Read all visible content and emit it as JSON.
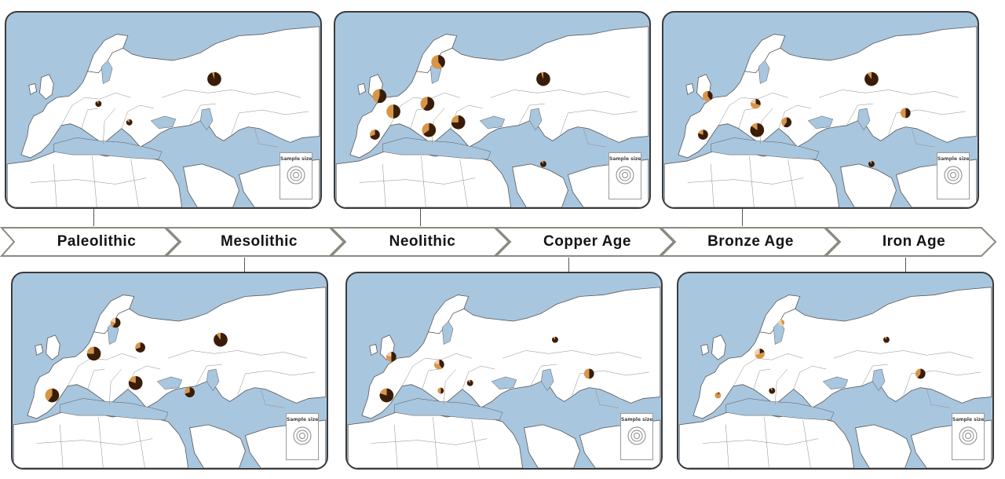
{
  "timeline": {
    "periods": [
      {
        "label": "Paleolithic"
      },
      {
        "label": "Mesolithic"
      },
      {
        "label": "Neolithic"
      },
      {
        "label": "Copper Age"
      },
      {
        "label": "Bronze Age"
      },
      {
        "label": "Iron Age"
      }
    ]
  },
  "legend": {
    "title": "Sample size"
  },
  "colors": {
    "sea": "#a9c6df",
    "land": "#ffffff",
    "border": "#555555",
    "dark_brown": "#3a1d08",
    "tan": "#d99546",
    "light_tan": "#ecd0ac",
    "panel_border": "#3b3b3b"
  },
  "maps": [
    {
      "period": "Paleolithic",
      "samples": [
        {
          "region": "Siberia",
          "size": 3,
          "parts": [
            0.95,
            0.05,
            0
          ]
        },
        {
          "region": "Central Europe",
          "size": 1,
          "parts": [
            0.9,
            0.1,
            0
          ]
        },
        {
          "region": "Balkans",
          "size": 1,
          "parts": [
            0.85,
            0.15,
            0
          ]
        }
      ]
    },
    {
      "period": "Mesolithic",
      "samples": [
        {
          "region": "Siberia",
          "size": 3,
          "parts": [
            0.9,
            0.1,
            0
          ]
        },
        {
          "region": "Scandinavia",
          "size": 2,
          "parts": [
            0.6,
            0.2,
            0.2
          ]
        },
        {
          "region": "Baltic",
          "size": 2,
          "parts": [
            0.7,
            0.3,
            0
          ]
        },
        {
          "region": "North Germany",
          "size": 3,
          "parts": [
            0.75,
            0.25,
            0
          ]
        },
        {
          "region": "Iberia",
          "size": 3,
          "parts": [
            0.6,
            0.4,
            0
          ]
        },
        {
          "region": "Balkans",
          "size": 3,
          "parts": [
            0.8,
            0.2,
            0
          ]
        },
        {
          "region": "Anatolia",
          "size": 2,
          "parts": [
            0.7,
            0.3,
            0
          ]
        }
      ]
    },
    {
      "period": "Neolithic",
      "samples": [
        {
          "region": "Siberia",
          "size": 3,
          "parts": [
            0.95,
            0.05,
            0
          ]
        },
        {
          "region": "Britain",
          "size": 3,
          "parts": [
            0.55,
            0.45,
            0
          ]
        },
        {
          "region": "Scandinavia",
          "size": 3,
          "parts": [
            0.4,
            0.6,
            0
          ]
        },
        {
          "region": "France",
          "size": 3,
          "parts": [
            0.5,
            0.5,
            0
          ]
        },
        {
          "region": "Central Europe",
          "size": 3,
          "parts": [
            0.6,
            0.4,
            0
          ]
        },
        {
          "region": "Iberia",
          "size": 2,
          "parts": [
            0.7,
            0.3,
            0
          ]
        },
        {
          "region": "Italy",
          "size": 3,
          "parts": [
            0.65,
            0.35,
            0
          ]
        },
        {
          "region": "Balkans",
          "size": 3,
          "parts": [
            0.75,
            0.25,
            0
          ]
        },
        {
          "region": "Iran",
          "size": 1,
          "parts": [
            0.9,
            0.1,
            0
          ]
        }
      ]
    },
    {
      "period": "Copper Age",
      "samples": [
        {
          "region": "Siberia",
          "size": 1,
          "parts": [
            0.9,
            0.1,
            0
          ]
        },
        {
          "region": "Central Asia",
          "size": 2,
          "parts": [
            0.5,
            0.5,
            0
          ]
        },
        {
          "region": "Iberia",
          "size": 3,
          "parts": [
            0.8,
            0.2,
            0
          ]
        },
        {
          "region": "Britain",
          "size": 2,
          "parts": [
            0.5,
            0.3,
            0.2
          ]
        },
        {
          "region": "Central Europe",
          "size": 2,
          "parts": [
            0.4,
            0.4,
            0.2
          ]
        },
        {
          "region": "Italy",
          "size": 1,
          "parts": [
            0.5,
            0.5,
            0
          ]
        },
        {
          "region": "Balkans",
          "size": 1,
          "parts": [
            0.9,
            0.1,
            0
          ]
        }
      ]
    },
    {
      "period": "Bronze Age",
      "samples": [
        {
          "region": "Siberia",
          "size": 3,
          "parts": [
            0.9,
            0.1,
            0
          ]
        },
        {
          "region": "Central Asia",
          "size": 2,
          "parts": [
            0.5,
            0.5,
            0
          ]
        },
        {
          "region": "Britain",
          "size": 2,
          "parts": [
            0.4,
            0.6,
            0
          ]
        },
        {
          "region": "Central Europe",
          "size": 2,
          "parts": [
            0.3,
            0.5,
            0.2
          ]
        },
        {
          "region": "Iberia",
          "size": 2,
          "parts": [
            0.8,
            0.2,
            0
          ]
        },
        {
          "region": "Italy",
          "size": 3,
          "parts": [
            0.85,
            0.15,
            0
          ]
        },
        {
          "region": "Balkans",
          "size": 2,
          "parts": [
            0.6,
            0.4,
            0
          ]
        },
        {
          "region": "Iran",
          "size": 1,
          "parts": [
            0.9,
            0.1,
            0
          ]
        }
      ]
    },
    {
      "period": "Iron Age",
      "samples": [
        {
          "region": "Siberia",
          "size": 1,
          "parts": [
            0.9,
            0.1,
            0
          ]
        },
        {
          "region": "Central Asia",
          "size": 2,
          "parts": [
            0.6,
            0.4,
            0
          ]
        },
        {
          "region": "North Germany",
          "size": 2,
          "parts": [
            0.2,
            0.5,
            0.3
          ]
        },
        {
          "region": "Iberia",
          "size": 1,
          "parts": [
            0.1,
            0.9,
            0
          ]
        },
        {
          "region": "Italy",
          "size": 1,
          "parts": [
            0.9,
            0.1,
            0
          ]
        },
        {
          "region": "Scandinavia",
          "size": 1,
          "parts": [
            0,
            0.4,
            0.6
          ]
        }
      ]
    }
  ]
}
